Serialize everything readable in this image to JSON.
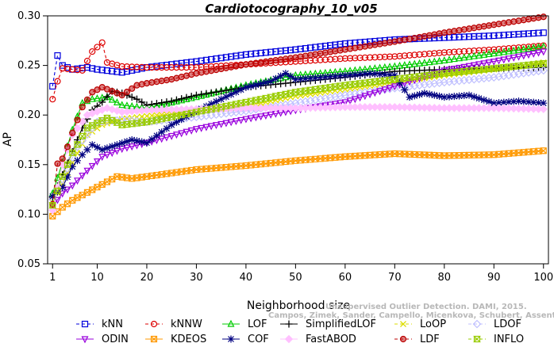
{
  "chart_data": {
    "type": "line",
    "title": "Cardiotocography_10_v05",
    "xlabel": "Neighborhood size",
    "ylabel": "AP",
    "xlim": [
      0,
      101
    ],
    "ylim": [
      0.05,
      0.3
    ],
    "x_ticks": [
      1,
      10,
      20,
      30,
      40,
      50,
      60,
      70,
      80,
      90,
      100
    ],
    "x_tick_labels": [
      "1",
      "10",
      "20",
      "30",
      "40",
      "50",
      "60",
      "70",
      "80",
      "90",
      "100"
    ],
    "y_ticks": [
      0.05,
      0.1,
      0.15,
      0.2,
      0.25,
      0.3
    ],
    "y_tick_labels": [
      "0.05",
      "0.10",
      "0.15",
      "0.20",
      "0.25",
      "0.30"
    ],
    "grid": false,
    "legend_position": "bottom",
    "series": [
      {
        "name": "kNN",
        "color": "#0000dd",
        "marker": "square",
        "dash": "4,3",
        "points": [
          [
            1,
            0.229
          ],
          [
            2,
            0.26
          ],
          [
            3,
            0.25
          ],
          [
            5,
            0.246
          ],
          [
            8,
            0.248
          ],
          [
            10,
            0.246
          ],
          [
            15,
            0.243
          ],
          [
            20,
            0.248
          ],
          [
            30,
            0.254
          ],
          [
            40,
            0.261
          ],
          [
            50,
            0.266
          ],
          [
            60,
            0.272
          ],
          [
            70,
            0.276
          ],
          [
            80,
            0.278
          ],
          [
            90,
            0.28
          ],
          [
            100,
            0.283
          ]
        ]
      },
      {
        "name": "kNNW",
        "color": "#dd0000",
        "marker": "circle",
        "dash": "4,3",
        "points": [
          [
            1,
            0.216
          ],
          [
            2,
            0.234
          ],
          [
            3,
            0.247
          ],
          [
            5,
            0.246
          ],
          [
            7,
            0.245
          ],
          [
            9,
            0.264
          ],
          [
            11,
            0.273
          ],
          [
            12,
            0.253
          ],
          [
            15,
            0.249
          ],
          [
            20,
            0.248
          ],
          [
            30,
            0.248
          ],
          [
            40,
            0.251
          ],
          [
            50,
            0.254
          ],
          [
            60,
            0.257
          ],
          [
            70,
            0.259
          ],
          [
            80,
            0.263
          ],
          [
            90,
            0.266
          ],
          [
            100,
            0.27
          ]
        ]
      },
      {
        "name": "LOF",
        "color": "#00cc00",
        "marker": "triangle-up",
        "dash": "none",
        "points": [
          [
            1,
            0.121
          ],
          [
            3,
            0.152
          ],
          [
            5,
            0.185
          ],
          [
            7,
            0.212
          ],
          [
            9,
            0.216
          ],
          [
            12,
            0.218
          ],
          [
            15,
            0.21
          ],
          [
            20,
            0.207
          ],
          [
            30,
            0.218
          ],
          [
            40,
            0.23
          ],
          [
            50,
            0.24
          ],
          [
            60,
            0.244
          ],
          [
            70,
            0.249
          ],
          [
            80,
            0.255
          ],
          [
            90,
            0.262
          ],
          [
            100,
            0.269
          ]
        ]
      },
      {
        "name": "SimplifiedLOF",
        "color": "#000000",
        "marker": "plus",
        "dash": "none",
        "points": [
          [
            1,
            0.117
          ],
          [
            3,
            0.14
          ],
          [
            5,
            0.163
          ],
          [
            7,
            0.187
          ],
          [
            9,
            0.205
          ],
          [
            11,
            0.213
          ],
          [
            13,
            0.224
          ],
          [
            15,
            0.222
          ],
          [
            18,
            0.216
          ],
          [
            20,
            0.21
          ],
          [
            25,
            0.214
          ],
          [
            30,
            0.22
          ],
          [
            40,
            0.228
          ],
          [
            50,
            0.233
          ],
          [
            60,
            0.238
          ],
          [
            70,
            0.244
          ],
          [
            80,
            0.246
          ],
          [
            90,
            0.247
          ],
          [
            100,
            0.248
          ]
        ]
      },
      {
        "name": "LoOP",
        "color": "#dddd00",
        "marker": "x",
        "dash": "4,3",
        "points": [
          [
            1,
            0.112
          ],
          [
            3,
            0.131
          ],
          [
            5,
            0.152
          ],
          [
            8,
            0.18
          ],
          [
            11,
            0.19
          ],
          [
            15,
            0.196
          ],
          [
            20,
            0.199
          ],
          [
            30,
            0.203
          ],
          [
            40,
            0.209
          ],
          [
            50,
            0.219
          ],
          [
            60,
            0.226
          ],
          [
            70,
            0.233
          ],
          [
            80,
            0.24
          ],
          [
            90,
            0.246
          ],
          [
            100,
            0.253
          ]
        ]
      },
      {
        "name": "LDOF",
        "color": "#c0c0ff",
        "marker": "diamond",
        "dash": "4,3",
        "points": [
          [
            1,
            0.115
          ],
          [
            3,
            0.135
          ],
          [
            6,
            0.168
          ],
          [
            10,
            0.193
          ],
          [
            15,
            0.195
          ],
          [
            20,
            0.193
          ],
          [
            30,
            0.198
          ],
          [
            40,
            0.204
          ],
          [
            50,
            0.212
          ],
          [
            60,
            0.22
          ],
          [
            70,
            0.227
          ],
          [
            80,
            0.233
          ],
          [
            90,
            0.238
          ],
          [
            100,
            0.245
          ]
        ]
      },
      {
        "name": "ODIN",
        "color": "#9900dd",
        "marker": "triangle-down",
        "dash": "none",
        "points": [
          [
            1,
            0.108
          ],
          [
            3,
            0.121
          ],
          [
            5,
            0.129
          ],
          [
            8,
            0.144
          ],
          [
            11,
            0.158
          ],
          [
            15,
            0.166
          ],
          [
            20,
            0.172
          ],
          [
            25,
            0.179
          ],
          [
            30,
            0.186
          ],
          [
            40,
            0.196
          ],
          [
            50,
            0.205
          ],
          [
            60,
            0.213
          ],
          [
            70,
            0.229
          ],
          [
            80,
            0.245
          ],
          [
            90,
            0.254
          ],
          [
            100,
            0.264
          ]
        ]
      },
      {
        "name": "KDEOS",
        "color": "#ff9900",
        "marker": "square-x",
        "dash": "none",
        "points": [
          [
            1,
            0.098
          ],
          [
            3,
            0.107
          ],
          [
            5,
            0.114
          ],
          [
            8,
            0.122
          ],
          [
            11,
            0.13
          ],
          [
            14,
            0.138
          ],
          [
            17,
            0.136
          ],
          [
            20,
            0.138
          ],
          [
            30,
            0.145
          ],
          [
            40,
            0.149
          ],
          [
            50,
            0.154
          ],
          [
            60,
            0.158
          ],
          [
            70,
            0.161
          ],
          [
            80,
            0.159
          ],
          [
            90,
            0.16
          ],
          [
            100,
            0.164
          ]
        ]
      },
      {
        "name": "COF",
        "color": "#000080",
        "marker": "star",
        "dash": "none",
        "points": [
          [
            1,
            0.118
          ],
          [
            3,
            0.127
          ],
          [
            5,
            0.148
          ],
          [
            7,
            0.16
          ],
          [
            9,
            0.17
          ],
          [
            11,
            0.165
          ],
          [
            14,
            0.17
          ],
          [
            17,
            0.175
          ],
          [
            20,
            0.172
          ],
          [
            25,
            0.19
          ],
          [
            30,
            0.204
          ],
          [
            35,
            0.216
          ],
          [
            40,
            0.228
          ],
          [
            45,
            0.234
          ],
          [
            48,
            0.242
          ],
          [
            50,
            0.236
          ],
          [
            55,
            0.238
          ],
          [
            60,
            0.24
          ],
          [
            65,
            0.242
          ],
          [
            70,
            0.24
          ],
          [
            73,
            0.218
          ],
          [
            76,
            0.222
          ],
          [
            80,
            0.218
          ],
          [
            85,
            0.22
          ],
          [
            90,
            0.212
          ],
          [
            95,
            0.214
          ],
          [
            100,
            0.212
          ]
        ]
      },
      {
        "name": "FastABOD",
        "color": "#ffc0ff",
        "marker": "diamond-filled",
        "dash": "none",
        "points": [
          [
            1,
            0.104
          ],
          [
            3,
            0.15
          ],
          [
            5,
            0.18
          ],
          [
            8,
            0.2
          ],
          [
            12,
            0.207
          ],
          [
            15,
            0.203
          ],
          [
            20,
            0.205
          ],
          [
            30,
            0.206
          ],
          [
            40,
            0.207
          ],
          [
            50,
            0.207
          ],
          [
            60,
            0.208
          ],
          [
            70,
            0.208
          ],
          [
            80,
            0.207
          ],
          [
            90,
            0.207
          ],
          [
            100,
            0.206
          ]
        ]
      },
      {
        "name": "LDF",
        "color": "#bb0000",
        "marker": "circle-filled",
        "dash": "4,3",
        "points": [
          [
            1,
            0.11
          ],
          [
            2,
            0.151
          ],
          [
            3,
            0.156
          ],
          [
            4,
            0.168
          ],
          [
            5,
            0.182
          ],
          [
            7,
            0.208
          ],
          [
            9,
            0.223
          ],
          [
            11,
            0.228
          ],
          [
            15,
            0.22
          ],
          [
            18,
            0.23
          ],
          [
            20,
            0.232
          ],
          [
            25,
            0.236
          ],
          [
            30,
            0.242
          ],
          [
            40,
            0.251
          ],
          [
            50,
            0.258
          ],
          [
            60,
            0.266
          ],
          [
            70,
            0.274
          ],
          [
            80,
            0.283
          ],
          [
            90,
            0.291
          ],
          [
            100,
            0.299
          ]
        ]
      },
      {
        "name": "INFLO",
        "color": "#99cc00",
        "marker": "hourglass",
        "dash": "4,3",
        "points": [
          [
            1,
            0.109
          ],
          [
            3,
            0.138
          ],
          [
            5,
            0.162
          ],
          [
            8,
            0.187
          ],
          [
            12,
            0.197
          ],
          [
            15,
            0.19
          ],
          [
            20,
            0.193
          ],
          [
            30,
            0.203
          ],
          [
            40,
            0.213
          ],
          [
            50,
            0.223
          ],
          [
            60,
            0.23
          ],
          [
            70,
            0.236
          ],
          [
            80,
            0.242
          ],
          [
            90,
            0.247
          ],
          [
            100,
            0.252
          ]
        ]
      }
    ]
  },
  "watermark": {
    "line1": "Unsupervised Outlier Detection. DAMI, 2015.",
    "line2": "Campos, Zimek, Sander, Campello, Micenkova, Schubert, Assent, Houle"
  }
}
